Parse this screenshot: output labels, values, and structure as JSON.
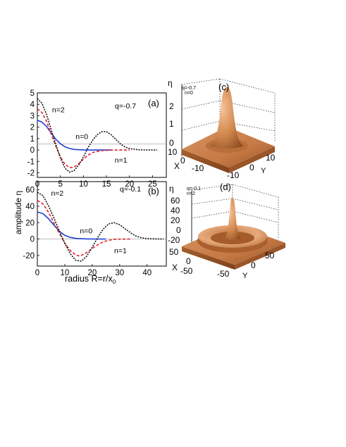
{
  "chart_data": [
    {
      "panel_label": "(a)",
      "type": "line",
      "annotation": "q=-0.7",
      "xlabel": "",
      "ylabel": "",
      "xlim": [
        0,
        28
      ],
      "ylim": [
        -2.4,
        5
      ],
      "xticks": [
        "0",
        "5",
        "10",
        "15",
        "20",
        "25"
      ],
      "yticks": [
        "-2",
        "-1",
        "0",
        "1",
        "2",
        "3",
        "4",
        "5"
      ],
      "xtick_values": [
        0,
        5,
        10,
        15,
        20,
        25
      ],
      "ytick_values": [
        -2,
        -1,
        0,
        1,
        2,
        3,
        4,
        5
      ],
      "series": [
        {
          "label": "n=0",
          "color": "#1f3fd6",
          "dash": "solid",
          "x": [
            0,
            1,
            2,
            3,
            4,
            5,
            6,
            7,
            8,
            10,
            12,
            14,
            16
          ],
          "y": [
            2.6,
            2.45,
            2.05,
            1.5,
            0.95,
            0.55,
            0.28,
            0.13,
            0.05,
            0.01,
            0,
            0,
            0
          ]
        },
        {
          "label": "n=1",
          "color": "#e0202a",
          "dash": "dashed",
          "x": [
            0,
            1,
            2,
            3,
            4,
            5,
            6,
            7,
            8,
            9,
            10,
            11,
            12,
            14,
            16,
            18,
            20
          ],
          "y": [
            3.6,
            3.3,
            2.5,
            1.4,
            0.35,
            -0.6,
            -1.25,
            -1.55,
            -1.5,
            -1.2,
            -0.8,
            -0.45,
            -0.22,
            -0.05,
            -0.01,
            0,
            0
          ]
        },
        {
          "label": "n=2",
          "color": "#111111",
          "dash": "dotted",
          "x": [
            0,
            1,
            2,
            3,
            4,
            5,
            6,
            7,
            8,
            9,
            10,
            11,
            12,
            13,
            14,
            15,
            16,
            17,
            18,
            19,
            20,
            22,
            24,
            26
          ],
          "y": [
            4.5,
            4.1,
            3.1,
            1.8,
            0.5,
            -0.7,
            -1.6,
            -1.95,
            -1.8,
            -1.3,
            -0.6,
            0.2,
            0.85,
            1.35,
            1.6,
            1.6,
            1.35,
            0.95,
            0.55,
            0.28,
            0.12,
            0.02,
            0,
            0
          ]
        }
      ],
      "curve_labels": [
        {
          "text": "n=2",
          "x": 3.2,
          "y": 3.3
        },
        {
          "text": "n=0",
          "x": 8.3,
          "y": 0.95
        },
        {
          "text": "n=1",
          "x": 16.8,
          "y": -1.1
        }
      ]
    },
    {
      "panel_label": "(b)",
      "type": "line",
      "annotation": "q=-0.1",
      "xlabel": "radius R=r/x",
      "xlabel_sub": "0",
      "ylabel": "",
      "xlim": [
        0,
        47
      ],
      "ylim": [
        -33,
        70
      ],
      "xticks": [
        "0",
        "10",
        "20",
        "30",
        "40"
      ],
      "yticks": [
        "-20",
        "0",
        "20",
        "40",
        "60"
      ],
      "xtick_values": [
        0,
        10,
        20,
        30,
        40
      ],
      "ytick_values": [
        -20,
        0,
        20,
        40,
        60
      ],
      "series": [
        {
          "label": "n=0",
          "color": "#1f3fd6",
          "dash": "solid",
          "x": [
            0,
            2,
            4,
            6,
            8,
            10,
            12,
            14,
            18,
            22,
            25
          ],
          "y": [
            33,
            31,
            25,
            17,
            9.5,
            4.5,
            2,
            0.7,
            0.1,
            0,
            0
          ]
        },
        {
          "label": "n=1",
          "color": "#e0202a",
          "dash": "dashed",
          "x": [
            0,
            2,
            4,
            6,
            8,
            10,
            12,
            14,
            15,
            16,
            18,
            20,
            22,
            24,
            26,
            28,
            30,
            34
          ],
          "y": [
            47,
            43,
            33,
            20,
            7,
            -5,
            -14,
            -19.5,
            -20.5,
            -20,
            -16.5,
            -11.5,
            -7,
            -3.5,
            -1.5,
            -0.5,
            -0.1,
            0
          ]
        },
        {
          "label": "n=2",
          "color": "#111111",
          "dash": "dotted",
          "x": [
            0,
            2,
            4,
            6,
            8,
            10,
            12,
            14,
            16,
            18,
            20,
            22,
            24,
            26,
            28,
            30,
            32,
            34,
            36,
            38,
            40,
            43,
            46
          ],
          "y": [
            57,
            53,
            41,
            26,
            10,
            -5,
            -18,
            -26,
            -27,
            -21,
            -10,
            2,
            12,
            18.5,
            20,
            17.5,
            12.5,
            7.5,
            3.5,
            1.5,
            0.5,
            0.1,
            0
          ]
        }
      ],
      "curve_labels": [
        {
          "text": "n=2",
          "x": 5,
          "y": 53
        },
        {
          "text": "n=0",
          "x": 15.5,
          "y": 7
        },
        {
          "text": "n=1",
          "x": 28,
          "y": -17
        }
      ]
    },
    {
      "panel_label": "(c)",
      "type": "surface",
      "annotation_lines": [
        "q=-0.7",
        "n=0"
      ],
      "zlabel": "η",
      "xlabel": "X",
      "ylabel": "Y",
      "zticks": [
        "0",
        "1",
        "2"
      ],
      "xticks": [
        "10",
        "0",
        "-10"
      ],
      "yticks": [
        "-10",
        "0",
        "10"
      ],
      "peak": 2.6
    },
    {
      "panel_label": "(d)",
      "type": "surface",
      "annotation_lines": [
        "q=-0.1",
        "n=2"
      ],
      "zlabel": "η",
      "xlabel": "X",
      "ylabel": "Y",
      "zticks": [
        "-20",
        "0",
        "20",
        "40",
        "60"
      ],
      "xticks": [
        "50",
        "0",
        "-50"
      ],
      "yticks": [
        "-50",
        "0",
        "50"
      ],
      "peak": 57
    }
  ],
  "shared": {
    "ylabel_left": "amplitude η",
    "surface_color": "#d2884f"
  }
}
